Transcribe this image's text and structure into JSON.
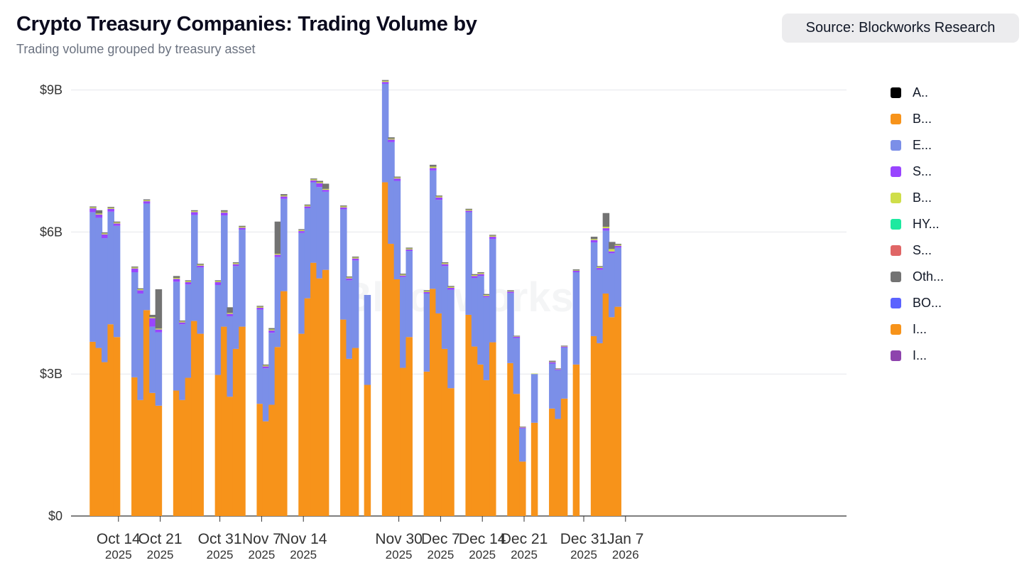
{
  "header": {
    "title": "Crypto Treasury Companies: Trading Volume by",
    "subtitle": "Trading volume grouped by treasury asset",
    "source": "Source: Blockworks Research"
  },
  "watermark": "Blockworks",
  "chart_data": {
    "type": "bar",
    "stacked": true,
    "title": "Crypto Treasury Companies: Trading Volume by",
    "subtitle": "Trading volume grouped by treasury asset",
    "ylabel": "",
    "ylim": [
      0,
      9.2
    ],
    "yticks": [
      {
        "value": 0,
        "label": "$0"
      },
      {
        "value": 3,
        "label": "$3B"
      },
      {
        "value": 6,
        "label": "$6B"
      },
      {
        "value": 9,
        "label": "$9B"
      }
    ],
    "xticks": [
      {
        "date": "2025-10-14",
        "label": "Oct 14",
        "year": "2025"
      },
      {
        "date": "2025-10-21",
        "label": "Oct 21",
        "year": "2025"
      },
      {
        "date": "2025-10-31",
        "label": "Oct 31",
        "year": "2025"
      },
      {
        "date": "2025-11-07",
        "label": "Nov 7",
        "year": "2025"
      },
      {
        "date": "2025-11-14",
        "label": "Nov 14",
        "year": "2025"
      },
      {
        "date": "2025-11-30",
        "label": "Nov 30",
        "year": "2025"
      },
      {
        "date": "2025-12-07",
        "label": "Dec 7",
        "year": "2025"
      },
      {
        "date": "2025-12-14",
        "label": "Dec 14",
        "year": "2025"
      },
      {
        "date": "2025-12-21",
        "label": "Dec 21",
        "year": "2025"
      },
      {
        "date": "2025-12-31",
        "label": "Dec 31",
        "year": "2025"
      },
      {
        "date": "2026-01-07",
        "label": "Jan 7",
        "year": "2026"
      }
    ],
    "legend_position": "right",
    "series_colors": [
      {
        "name": "A..",
        "color": "#000000"
      },
      {
        "name": "B...",
        "color": "#f7931a"
      },
      {
        "name": "E...",
        "color": "#7b8fe8"
      },
      {
        "name": "S...",
        "color": "#9945ff"
      },
      {
        "name": "B...",
        "color": "#cfde4a"
      },
      {
        "name": "HY...",
        "color": "#1de9a0"
      },
      {
        "name": "S...",
        "color": "#e06666"
      },
      {
        "name": "Oth...",
        "color": "#737373"
      },
      {
        "name": "BO...",
        "color": "#5b63ff"
      },
      {
        "name": "I...",
        "color": "#f7931a"
      },
      {
        "name": "I...",
        "color": "#8e44ad"
      }
    ],
    "bars": [
      {
        "date": "2025-10-12",
        "btc": 3.68,
        "eth": 2.74,
        "sol": 0.08,
        "bnb": 0.02,
        "other": 0.02
      },
      {
        "date": "2025-10-13",
        "btc": 3.55,
        "eth": 2.75,
        "sol": 0.07,
        "bnb": 0.02,
        "other": 0.07
      },
      {
        "date": "2025-10-14",
        "btc": 3.25,
        "eth": 2.62,
        "sol": 0.08,
        "bnb": 0.02,
        "other": 0.02
      },
      {
        "date": "2025-10-15",
        "btc": 4.05,
        "eth": 2.38,
        "sol": 0.06,
        "bnb": 0.02,
        "other": 0.02
      },
      {
        "date": "2025-10-16",
        "btc": 3.78,
        "eth": 2.35,
        "sol": 0.05,
        "bnb": 0.02,
        "other": 0.02
      },
      {
        "date": "2025-10-19",
        "btc": 2.93,
        "eth": 2.22,
        "sol": 0.08,
        "bnb": 0.02,
        "other": 0.02
      },
      {
        "date": "2025-10-20",
        "btc": 2.45,
        "eth": 2.25,
        "sol": 0.07,
        "bnb": 0.02,
        "other": 0.02
      },
      {
        "date": "2025-10-21",
        "btc": 4.35,
        "eth": 2.25,
        "sol": 0.05,
        "bnb": 0.02,
        "other": 0.02
      },
      {
        "date": "2025-10-22",
        "btc": 2.6,
        "eth": 1.4,
        "sol": 0.18,
        "bnb": 0.02,
        "other": 0.05
      },
      {
        "date": "2025-10-23",
        "btc": 2.33,
        "eth": 1.55,
        "sol": 0.06,
        "bnb": 0.02,
        "other": 0.83
      },
      {
        "date": "2025-10-26",
        "btc": 2.65,
        "eth": 2.3,
        "sol": 0.06,
        "bnb": 0.02,
        "other": 0.04
      },
      {
        "date": "2025-10-27",
        "btc": 2.45,
        "eth": 1.6,
        "sol": 0.04,
        "bnb": 0.02,
        "other": 0.02
      },
      {
        "date": "2025-10-28",
        "btc": 2.92,
        "eth": 1.97,
        "sol": 0.05,
        "bnb": 0.02,
        "other": 0.02
      },
      {
        "date": "2025-10-29",
        "btc": 4.12,
        "eth": 2.24,
        "sol": 0.06,
        "bnb": 0.02,
        "other": 0.02
      },
      {
        "date": "2025-10-30",
        "btc": 3.85,
        "eth": 1.4,
        "sol": 0.04,
        "bnb": 0.02,
        "other": 0.02
      },
      {
        "date": "2025-11-02",
        "btc": 2.98,
        "eth": 1.9,
        "sol": 0.06,
        "bnb": 0.02,
        "other": 0.02
      },
      {
        "date": "2025-11-03",
        "btc": 4.0,
        "eth": 2.35,
        "sol": 0.06,
        "bnb": 0.02,
        "other": 0.03
      },
      {
        "date": "2025-11-04",
        "btc": 2.52,
        "eth": 1.7,
        "sol": 0.05,
        "bnb": 0.02,
        "other": 0.12
      },
      {
        "date": "2025-11-05",
        "btc": 3.53,
        "eth": 1.75,
        "sol": 0.04,
        "bnb": 0.02,
        "other": 0.02
      },
      {
        "date": "2025-11-06",
        "btc": 4.0,
        "eth": 2.05,
        "sol": 0.04,
        "bnb": 0.02,
        "other": 0.02
      },
      {
        "date": "2025-11-09",
        "btc": 2.37,
        "eth": 1.99,
        "sol": 0.04,
        "bnb": 0.02,
        "other": 0.02
      },
      {
        "date": "2025-11-10",
        "btc": 2.0,
        "eth": 1.12,
        "sol": 0.04,
        "bnb": 0.02,
        "other": 0.02
      },
      {
        "date": "2025-11-11",
        "btc": 2.35,
        "eth": 1.52,
        "sol": 0.05,
        "bnb": 0.02,
        "other": 0.03
      },
      {
        "date": "2025-11-12",
        "btc": 3.57,
        "eth": 1.9,
        "sol": 0.05,
        "bnb": 0.02,
        "other": 0.68
      },
      {
        "date": "2025-11-13",
        "btc": 4.75,
        "eth": 1.95,
        "sol": 0.05,
        "bnb": 0.02,
        "other": 0.03
      },
      {
        "date": "2025-11-16",
        "btc": 3.85,
        "eth": 2.13,
        "sol": 0.04,
        "bnb": 0.02,
        "other": 0.02
      },
      {
        "date": "2025-11-17",
        "btc": 4.6,
        "eth": 1.9,
        "sol": 0.04,
        "bnb": 0.02,
        "other": 0.02
      },
      {
        "date": "2025-11-18",
        "btc": 5.35,
        "eth": 1.7,
        "sol": 0.04,
        "bnb": 0.02,
        "other": 0.02
      },
      {
        "date": "2025-11-19",
        "btc": 5.02,
        "eth": 1.93,
        "sol": 0.08,
        "bnb": 0.02,
        "other": 0.03
      },
      {
        "date": "2025-11-20",
        "btc": 5.2,
        "eth": 1.65,
        "sol": 0.04,
        "bnb": 0.02,
        "other": 0.11
      },
      {
        "date": "2025-11-23",
        "btc": 4.15,
        "eth": 2.33,
        "sol": 0.04,
        "bnb": 0.02,
        "other": 0.02
      },
      {
        "date": "2025-11-24",
        "btc": 3.32,
        "eth": 1.66,
        "sol": 0.04,
        "bnb": 0.02,
        "other": 0.02
      },
      {
        "date": "2025-11-25",
        "btc": 3.55,
        "eth": 1.85,
        "sol": 0.04,
        "bnb": 0.02,
        "other": 0.02
      },
      {
        "date": "2025-11-27",
        "btc": 2.77,
        "eth": 1.9,
        "sol": 0.0,
        "bnb": 0.0,
        "other": 0.0
      },
      {
        "date": "2025-11-30",
        "btc": 7.05,
        "eth": 2.08,
        "sol": 0.04,
        "bnb": 0.02,
        "other": 0.02
      },
      {
        "date": "2025-12-01",
        "btc": 5.75,
        "eth": 2.15,
        "sol": 0.05,
        "bnb": 0.02,
        "other": 0.03
      },
      {
        "date": "2025-12-02",
        "btc": 5.0,
        "eth": 2.08,
        "sol": 0.05,
        "bnb": 0.02,
        "other": 0.02
      },
      {
        "date": "2025-12-03",
        "btc": 3.13,
        "eth": 1.92,
        "sol": 0.03,
        "bnb": 0.02,
        "other": 0.02
      },
      {
        "date": "2025-12-04",
        "btc": 3.78,
        "eth": 1.82,
        "sol": 0.03,
        "bnb": 0.02,
        "other": 0.02
      },
      {
        "date": "2025-12-07",
        "btc": 3.05,
        "eth": 1.65,
        "sol": 0.03,
        "bnb": 0.02,
        "other": 0.02
      },
      {
        "date": "2025-12-08",
        "btc": 4.8,
        "eth": 2.5,
        "sol": 0.05,
        "bnb": 0.03,
        "other": 0.04
      },
      {
        "date": "2025-12-09",
        "btc": 4.28,
        "eth": 2.4,
        "sol": 0.05,
        "bnb": 0.02,
        "other": 0.02
      },
      {
        "date": "2025-12-10",
        "btc": 3.53,
        "eth": 1.75,
        "sol": 0.04,
        "bnb": 0.02,
        "other": 0.02
      },
      {
        "date": "2025-12-11",
        "btc": 2.7,
        "eth": 2.08,
        "sol": 0.04,
        "bnb": 0.02,
        "other": 0.02
      },
      {
        "date": "2025-12-14",
        "btc": 4.25,
        "eth": 2.17,
        "sol": 0.03,
        "bnb": 0.02,
        "other": 0.02
      },
      {
        "date": "2025-12-15",
        "btc": 3.58,
        "eth": 1.45,
        "sol": 0.04,
        "bnb": 0.02,
        "other": 0.02
      },
      {
        "date": "2025-12-16",
        "btc": 3.2,
        "eth": 1.87,
        "sol": 0.04,
        "bnb": 0.02,
        "other": 0.02
      },
      {
        "date": "2025-12-17",
        "btc": 2.87,
        "eth": 1.75,
        "sol": 0.03,
        "bnb": 0.02,
        "other": 0.02
      },
      {
        "date": "2025-12-18",
        "btc": 3.67,
        "eth": 2.18,
        "sol": 0.05,
        "bnb": 0.02,
        "other": 0.02
      },
      {
        "date": "2025-12-21",
        "btc": 3.23,
        "eth": 1.48,
        "sol": 0.03,
        "bnb": 0.01,
        "other": 0.02
      },
      {
        "date": "2025-12-22",
        "btc": 2.58,
        "eth": 1.18,
        "sol": 0.03,
        "bnb": 0.01,
        "other": 0.01
      },
      {
        "date": "2025-12-23",
        "btc": 1.15,
        "eth": 0.7,
        "sol": 0.02,
        "bnb": 0.01,
        "other": 0.01
      },
      {
        "date": "2025-12-25",
        "btc": 1.97,
        "eth": 1.03,
        "sol": 0.0,
        "bnb": 0.01,
        "other": 0.0
      },
      {
        "date": "2025-12-28",
        "btc": 2.27,
        "eth": 0.95,
        "sol": 0.03,
        "bnb": 0.01,
        "other": 0.02
      },
      {
        "date": "2025-12-29",
        "btc": 2.05,
        "eth": 1.03,
        "sol": 0.02,
        "bnb": 0.01,
        "other": 0.01
      },
      {
        "date": "2025-12-30",
        "btc": 2.48,
        "eth": 1.08,
        "sol": 0.02,
        "bnb": 0.01,
        "other": 0.01
      },
      {
        "date": "2026-01-01",
        "btc": 3.2,
        "eth": 1.95,
        "sol": 0.03,
        "bnb": 0.01,
        "other": 0.02
      },
      {
        "date": "2026-01-04",
        "btc": 3.8,
        "eth": 1.98,
        "sol": 0.05,
        "bnb": 0.02,
        "other": 0.05
      },
      {
        "date": "2026-01-05",
        "btc": 3.65,
        "eth": 1.55,
        "sol": 0.04,
        "bnb": 0.02,
        "other": 0.02
      },
      {
        "date": "2026-01-06",
        "btc": 4.7,
        "eth": 1.33,
        "sol": 0.05,
        "bnb": 0.03,
        "other": 0.29
      },
      {
        "date": "2026-01-07",
        "btc": 4.2,
        "eth": 1.35,
        "sol": 0.04,
        "bnb": 0.05,
        "other": 0.15
      },
      {
        "date": "2026-01-08",
        "btc": 4.42,
        "eth": 1.25,
        "sol": 0.04,
        "bnb": 0.02,
        "other": 0.02
      }
    ]
  }
}
